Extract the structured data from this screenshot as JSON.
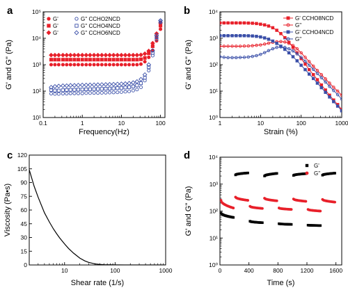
{
  "chart_data": [
    {
      "panel": "a",
      "type": "scatter",
      "xlabel": "Frequency(Hz)",
      "ylabel": "G' and G'' (Pa)",
      "xscale": "log",
      "yscale": "log",
      "xlim": [
        0.1,
        130
      ],
      "ylim": [
        10,
        100000
      ],
      "x_ticks": [
        0.1,
        1,
        10,
        100
      ],
      "x_tick_labels": [
        "0.1",
        "1",
        "10",
        "100"
      ],
      "y_ticks": [
        10,
        100,
        1000,
        10000,
        100000
      ],
      "y_tick_labels": [
        "10¹",
        "10²",
        "10³",
        "10⁴",
        "10⁵"
      ],
      "legend_position": "top-left",
      "legend": {
        "left": [
          {
            "label": "G'",
            "marker": "circle"
          },
          {
            "label": "G'",
            "marker": "square"
          },
          {
            "label": "G'",
            "marker": "diamond"
          }
        ],
        "right": [
          {
            "label": "G'' CCHO2NCD",
            "marker": "circle"
          },
          {
            "label": "G'' CCHO4NCD",
            "marker": "square"
          },
          {
            "label": "G'' CCHO6NCD",
            "marker": "diamond"
          }
        ]
      },
      "x": [
        0.16,
        0.2,
        0.25,
        0.32,
        0.4,
        0.5,
        0.63,
        0.79,
        1,
        1.26,
        1.58,
        2,
        2.51,
        3.16,
        3.98,
        5.01,
        6.31,
        7.94,
        10,
        12.6,
        15.8,
        20,
        25.1,
        31.6,
        39.8,
        50.1,
        63.1,
        79.4,
        100
      ],
      "series": [
        {
          "marker": "circle",
          "filled": true,
          "color": "#e8202a",
          "values": [
            1000,
            1000,
            1000,
            1000,
            1000,
            1000,
            1000,
            1000,
            1000,
            1000,
            1000,
            1000,
            1000,
            1000,
            1000,
            1000,
            1000,
            1000,
            1000,
            1000,
            1000,
            1000,
            1000,
            1050,
            1300,
            1900,
            3500,
            8000,
            22000
          ]
        },
        {
          "marker": "square",
          "filled": true,
          "color": "#e8202a",
          "values": [
            1550,
            1550,
            1550,
            1550,
            1550,
            1550,
            1550,
            1550,
            1550,
            1550,
            1550,
            1550,
            1550,
            1550,
            1550,
            1550,
            1550,
            1550,
            1550,
            1550,
            1550,
            1550,
            1550,
            1600,
            1800,
            2700,
            5000,
            11000,
            30000
          ]
        },
        {
          "marker": "diamond",
          "filled": true,
          "color": "#e8202a",
          "values": [
            2300,
            2300,
            2300,
            2300,
            2300,
            2300,
            2300,
            2300,
            2300,
            2300,
            2300,
            2300,
            2300,
            2300,
            2300,
            2300,
            2300,
            2300,
            2300,
            2300,
            2300,
            2300,
            2300,
            2350,
            2600,
            3300,
            6500,
            15000,
            38000
          ]
        },
        {
          "marker": "circle",
          "filled": false,
          "color": "#3a4fa8",
          "values": [
            80,
            78,
            78,
            80,
            80,
            82,
            82,
            82,
            82,
            84,
            84,
            85,
            85,
            86,
            87,
            88,
            89,
            90,
            92,
            95,
            98,
            105,
            115,
            140,
            250,
            600,
            2200,
            9000,
            40000
          ]
        },
        {
          "marker": "square",
          "filled": false,
          "color": "#3a4fa8",
          "values": [
            110,
            105,
            105,
            108,
            110,
            112,
            112,
            114,
            115,
            117,
            118,
            119,
            120,
            121,
            123,
            125,
            127,
            130,
            133,
            137,
            142,
            150,
            165,
            200,
            320,
            800,
            2800,
            11000,
            43000
          ]
        },
        {
          "marker": "diamond",
          "filled": false,
          "color": "#3a4fa8",
          "values": [
            140,
            150,
            155,
            160,
            160,
            165,
            165,
            168,
            170,
            170,
            172,
            173,
            175,
            177,
            178,
            180,
            182,
            185,
            188,
            192,
            198,
            210,
            230,
            280,
            420,
            1000,
            3400,
            13000,
            47000
          ]
        }
      ]
    },
    {
      "panel": "b",
      "type": "line",
      "xlabel": "Strain (%)",
      "ylabel": "G' and G'' (Pa)",
      "xscale": "log",
      "yscale": "log",
      "xlim": [
        1,
        1000
      ],
      "ylim": [
        1,
        10000
      ],
      "x_ticks": [
        1,
        10,
        100,
        1000
      ],
      "x_tick_labels": [
        "1",
        "10",
        "100",
        "1000"
      ],
      "y_ticks": [
        1,
        10,
        100,
        1000,
        10000
      ],
      "y_tick_labels": [
        "10⁰",
        "10¹",
        "10²",
        "10³",
        "10⁴"
      ],
      "legend_position": "top-right",
      "legend_labels": [
        "G' CCHO8NCD",
        "G''",
        "G' CCHO4NCD",
        "G''"
      ],
      "x": [
        1,
        1.26,
        1.58,
        2,
        2.51,
        3.16,
        3.98,
        5.01,
        6.31,
        7.94,
        10,
        12.6,
        15.8,
        20,
        25.1,
        31.6,
        39.8,
        50.1,
        63.1,
        79.4,
        100,
        126,
        158,
        200,
        251,
        316,
        398,
        501,
        631,
        794,
        1000
      ],
      "series": [
        {
          "marker": "square",
          "filled": true,
          "color": "#e8202a",
          "values": [
            3800,
            3800,
            3800,
            3800,
            3800,
            3800,
            3800,
            3750,
            3700,
            3600,
            3400,
            3200,
            2900,
            2500,
            2000,
            1500,
            1050,
            700,
            450,
            280,
            170,
            105,
            65,
            42,
            27,
            17,
            11,
            7,
            4.6,
            3.1,
            2.0
          ]
        },
        {
          "marker": "circle",
          "filled": false,
          "color": "#e8202a",
          "values": [
            500,
            500,
            500,
            500,
            500,
            500,
            505,
            510,
            520,
            540,
            560,
            600,
            650,
            700,
            740,
            750,
            720,
            640,
            530,
            400,
            280,
            190,
            130,
            88,
            60,
            42,
            29,
            20,
            14,
            10,
            7
          ]
        },
        {
          "marker": "square",
          "filled": true,
          "color": "#3a4fa8",
          "values": [
            1250,
            1250,
            1250,
            1250,
            1250,
            1250,
            1250,
            1240,
            1220,
            1180,
            1120,
            1030,
            920,
            780,
            640,
            500,
            380,
            280,
            200,
            140,
            95,
            65,
            44,
            30,
            20,
            13.5,
            9,
            6,
            4,
            2.7,
            1.8
          ]
        },
        {
          "marker": "circle",
          "filled": false,
          "color": "#3a4fa8",
          "values": [
            200,
            190,
            185,
            185,
            185,
            188,
            190,
            195,
            205,
            220,
            245,
            285,
            340,
            400,
            450,
            470,
            450,
            400,
            330,
            255,
            190,
            135,
            95,
            66,
            46,
            32,
            22,
            15,
            10.5,
            7.3,
            5
          ]
        }
      ]
    },
    {
      "panel": "c",
      "type": "line",
      "xlabel": "Shear rate (1/s)",
      "ylabel": "Viscosity (Pa•s)",
      "xscale": "log",
      "yscale": "linear",
      "xlim": [
        2,
        1000
      ],
      "ylim": [
        0,
        120
      ],
      "x_ticks": [
        10,
        100,
        1000
      ],
      "x_tick_labels": [
        "10",
        "100",
        "1000"
      ],
      "y_ticks": [
        0,
        15,
        30,
        45,
        60,
        75,
        90,
        105,
        120
      ],
      "y_tick_labels": [
        "0",
        "15",
        "30",
        "45",
        "60",
        "75",
        "90",
        "105",
        "120"
      ],
      "x": [
        2,
        2.5,
        3,
        4,
        5,
        6,
        7,
        8,
        10,
        12,
        15,
        20,
        25,
        30,
        40,
        50,
        60,
        80,
        100,
        150,
        200,
        300,
        500,
        1000
      ],
      "series": [
        {
          "color": "#000000",
          "values": [
            104,
            86,
            74,
            57,
            47,
            39.5,
            34,
            29.5,
            23,
            18,
            13,
            7.5,
            4.5,
            2.8,
            1.2,
            0.6,
            0.35,
            0.2,
            0.1,
            0.05,
            0.03,
            0.02,
            0.01,
            0
          ]
        }
      ]
    },
    {
      "panel": "d",
      "type": "scatter",
      "xlabel": "Time (s)",
      "ylabel": "G' and G'' (Pa)",
      "xscale": "linear",
      "yscale": "log",
      "xlim": [
        0,
        1680
      ],
      "ylim": [
        1,
        10000
      ],
      "x_ticks": [
        0,
        400,
        800,
        1200,
        1600
      ],
      "x_tick_labels": [
        "0",
        "400",
        "800",
        "1200",
        "1600"
      ],
      "y_ticks": [
        1,
        10,
        100,
        1000,
        10000
      ],
      "y_tick_labels": [
        "10⁰",
        "10¹",
        "10²",
        "10³",
        "10⁴"
      ],
      "legend_position": "top-right",
      "legend_labels": [
        "G'",
        "G''"
      ],
      "segments": [
        {
          "t_start": 0,
          "t_end": 200,
          "series": "G'",
          "color": "#000000",
          "start": 85,
          "end": 58
        },
        {
          "t_start": 0,
          "t_end": 200,
          "series": "G''",
          "color": "#e8202a",
          "start": 250,
          "end": 130
        },
        {
          "t_start": 200,
          "t_end": 400,
          "series": "G'",
          "color": "#000000",
          "start": 2200,
          "end": 2600
        },
        {
          "t_start": 200,
          "t_end": 400,
          "series": "G''",
          "color": "#e8202a",
          "start": 330,
          "end": 250
        },
        {
          "t_start": 400,
          "t_end": 600,
          "series": "G'",
          "color": "#000000",
          "start": 42,
          "end": 37
        },
        {
          "t_start": 400,
          "t_end": 600,
          "series": "G''",
          "color": "#e8202a",
          "start": 150,
          "end": 125
        },
        {
          "t_start": 600,
          "t_end": 800,
          "series": "G'",
          "color": "#000000",
          "start": 2000,
          "end": 2500
        },
        {
          "t_start": 600,
          "t_end": 800,
          "series": "G''",
          "color": "#e8202a",
          "start": 300,
          "end": 240
        },
        {
          "t_start": 800,
          "t_end": 1000,
          "series": "G'",
          "color": "#000000",
          "start": 34,
          "end": 32
        },
        {
          "t_start": 800,
          "t_end": 1000,
          "series": "G''",
          "color": "#e8202a",
          "start": 130,
          "end": 115
        },
        {
          "t_start": 1000,
          "t_end": 1200,
          "series": "G'",
          "color": "#000000",
          "start": 2100,
          "end": 2450
        },
        {
          "t_start": 1000,
          "t_end": 1200,
          "series": "G''",
          "color": "#e8202a",
          "start": 280,
          "end": 230
        },
        {
          "t_start": 1200,
          "t_end": 1400,
          "series": "G'",
          "color": "#000000",
          "start": 30,
          "end": 29
        },
        {
          "t_start": 1200,
          "t_end": 1400,
          "series": "G''",
          "color": "#e8202a",
          "start": 115,
          "end": 100
        },
        {
          "t_start": 1400,
          "t_end": 1600,
          "series": "G'",
          "color": "#000000",
          "start": 2150,
          "end": 2550
        },
        {
          "t_start": 1400,
          "t_end": 1600,
          "series": "G''",
          "color": "#e8202a",
          "start": 270,
          "end": 215
        }
      ]
    }
  ]
}
